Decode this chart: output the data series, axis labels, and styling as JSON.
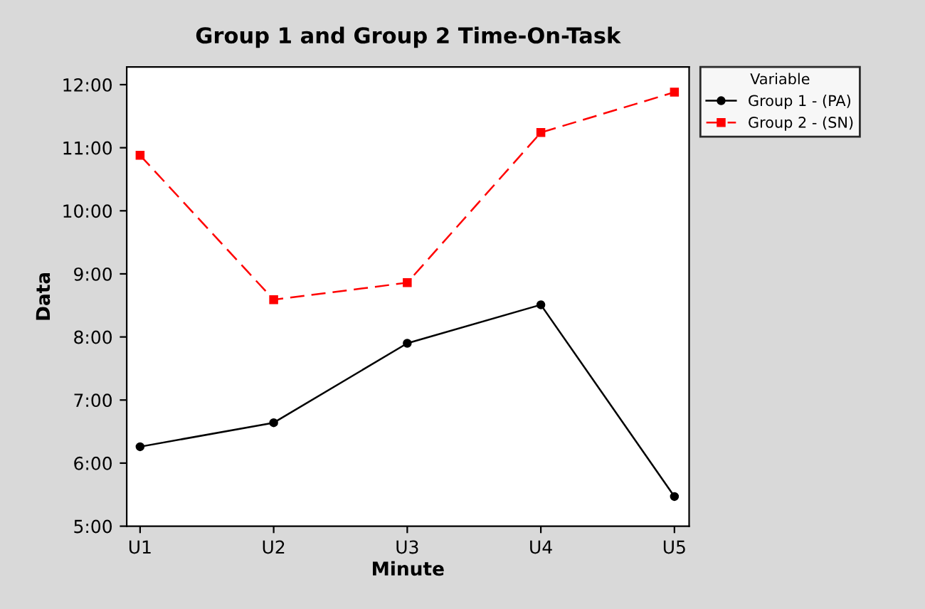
{
  "chart_data": {
    "type": "line",
    "title": "Group 1 and Group 2 Time-On-Task",
    "xlabel": "Minute",
    "ylabel": "Data",
    "legend_title": "Variable",
    "legend": "top right",
    "categories": [
      "U1",
      "U2",
      "U3",
      "U4",
      "U5"
    ],
    "series": [
      {
        "name": "Group 1 - (PA)",
        "color": "#000000",
        "values": [
          6.26,
          6.64,
          7.9,
          8.51,
          5.47
        ],
        "marker": "circle",
        "line_style": "solid"
      },
      {
        "name": "Group 2 - (SN)",
        "color": "#ff0000",
        "values": [
          10.88,
          8.59,
          8.86,
          11.24,
          11.88
        ],
        "marker": "square",
        "line_style": "dashed"
      }
    ],
    "ylim": [
      5,
      12.28
    ],
    "yticks": [
      {
        "value": 5,
        "label": "5:00"
      },
      {
        "value": 6,
        "label": "6:00"
      },
      {
        "value": 7,
        "label": "7:00"
      },
      {
        "value": 8,
        "label": "8:00"
      },
      {
        "value": 9,
        "label": "9:00"
      },
      {
        "value": 10,
        "label": "10:00"
      },
      {
        "value": 11,
        "label": "11:00"
      },
      {
        "value": 12,
        "label": "12:00"
      }
    ],
    "grid": false
  }
}
